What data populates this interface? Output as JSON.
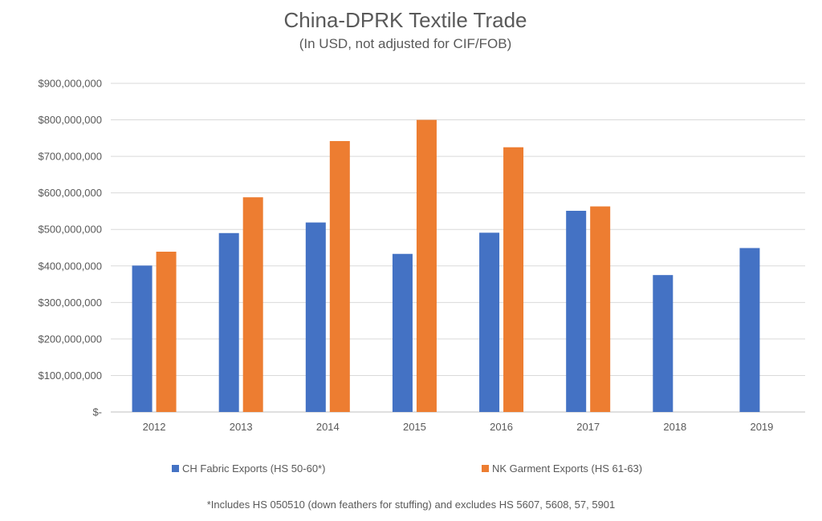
{
  "chart_data": {
    "type": "bar",
    "title": "China-DPRK Textile Trade",
    "subtitle": "(In USD, not adjusted for CIF/FOB)",
    "categories": [
      "2012",
      "2013",
      "2014",
      "2015",
      "2016",
      "2017",
      "2018",
      "2019"
    ],
    "series": [
      {
        "name": "CH Fabric Exports (HS 50-60*)",
        "color": "#4472C4",
        "values": [
          401000000,
          490000000,
          519000000,
          433000000,
          491000000,
          551000000,
          375000000,
          449000000
        ]
      },
      {
        "name": "NK Garment Exports (HS 61-63)",
        "color": "#ED7D31",
        "values": [
          439000000,
          588000000,
          742000000,
          800000000,
          725000000,
          563000000,
          null,
          null
        ]
      }
    ],
    "ylim": [
      0,
      900000000
    ],
    "yticks": [
      0,
      100000000,
      200000000,
      300000000,
      400000000,
      500000000,
      600000000,
      700000000,
      800000000,
      900000000
    ],
    "ytick_labels": [
      "$-",
      "$100,000,000",
      "$200,000,000",
      "$300,000,000",
      "$400,000,000",
      "$500,000,000",
      "$600,000,000",
      "$700,000,000",
      "$800,000,000",
      "$900,000,000"
    ],
    "grid": true,
    "legend_position": "bottom",
    "footnote": "*Includes HS 050510 (down feathers for stuffing) and excludes HS 5607, 5608, 57, 5901"
  }
}
